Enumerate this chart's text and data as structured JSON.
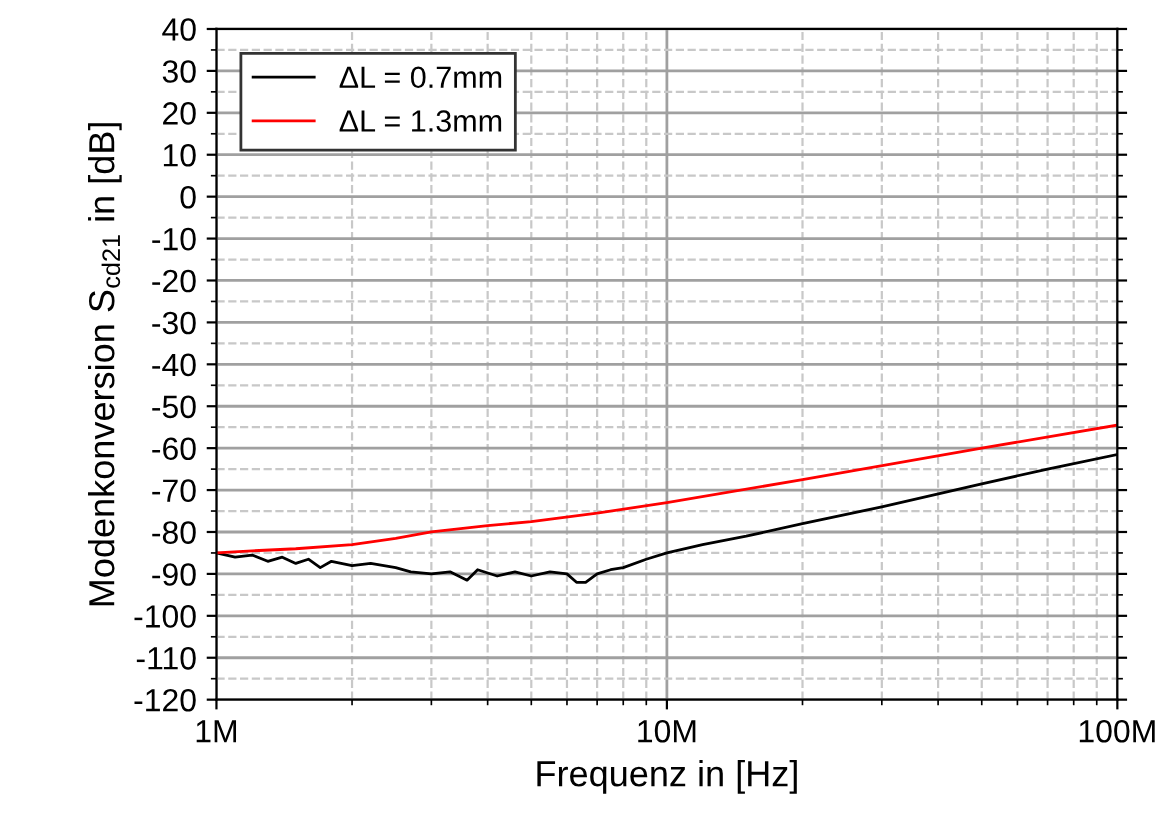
{
  "chart_data": {
    "type": "line",
    "xlabel": "Frequenz in [Hz]",
    "ylabel": "Modenkonversion S$_{cd21}$ in [dB]",
    "log": "x",
    "xlim": [
      1000000,
      100000000
    ],
    "xticks": [
      {
        "value": 1000000,
        "label": "1M"
      },
      {
        "value": 10000000,
        "label": "10M"
      },
      {
        "value": 100000000,
        "label": "100M"
      }
    ],
    "ylim": [
      -120,
      40
    ],
    "yticks": [
      -120,
      -110,
      -100,
      -90,
      -80,
      -70,
      -60,
      -50,
      -40,
      -30,
      -20,
      -10,
      0,
      10,
      20,
      30,
      40
    ],
    "grid": true,
    "legend": "top left",
    "line_style": "solid",
    "marker": "none",
    "series": [
      {
        "name": "ΔL = 0.7mm",
        "color": "#000000",
        "x": [
          1000000,
          1100000,
          1200000,
          1300000,
          1400000,
          1500000,
          1600000,
          1700000,
          1800000,
          2000000,
          2200000,
          2500000,
          2700000,
          3000000,
          3300000,
          3600000,
          3800000,
          4200000,
          4600000,
          5000000,
          5500000,
          6000000,
          6300000,
          6600000,
          7000000,
          7500000,
          8000000,
          9000000,
          10000000,
          12000000,
          15000000,
          20000000,
          30000000,
          50000000,
          70000000,
          100000000
        ],
        "values": [
          -85,
          -86,
          -85.5,
          -87,
          -86,
          -87.5,
          -86.5,
          -88.5,
          -87,
          -88,
          -87.5,
          -88.5,
          -89.5,
          -90,
          -89.5,
          -91.5,
          -89,
          -90.5,
          -89.5,
          -90.5,
          -89.5,
          -90,
          -92,
          -92,
          -90,
          -89,
          -88.5,
          -86.5,
          -85,
          -83,
          -81,
          -78,
          -74,
          -68.5,
          -65,
          -61.5
        ]
      },
      {
        "name": "ΔL = 1.3mm",
        "color": "#ff0000",
        "x": [
          1000000,
          1200000,
          1500000,
          2000000,
          2500000,
          3000000,
          4000000,
          5000000,
          7000000,
          10000000,
          20000000,
          50000000,
          100000000
        ],
        "values": [
          -85,
          -84.5,
          -84,
          -83,
          -81.5,
          -80,
          -78.5,
          -77.5,
          -75.5,
          -73,
          -67.5,
          -60,
          -54.5
        ]
      }
    ]
  }
}
